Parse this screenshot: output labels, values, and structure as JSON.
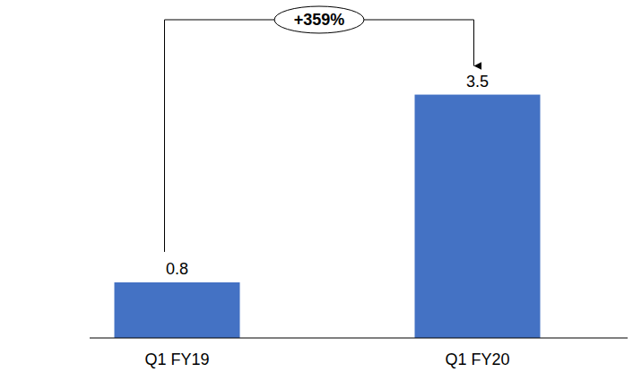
{
  "chart_data": {
    "type": "bar",
    "categories": [
      "Q1 FY19",
      "Q1 FY20"
    ],
    "values": [
      0.8,
      3.5
    ],
    "color": "#4472c4",
    "ylim": [
      0,
      4.5
    ],
    "data_labels": true,
    "tick_labels": "x",
    "grid": false,
    "annotations": [
      "+359%"
    ]
  }
}
